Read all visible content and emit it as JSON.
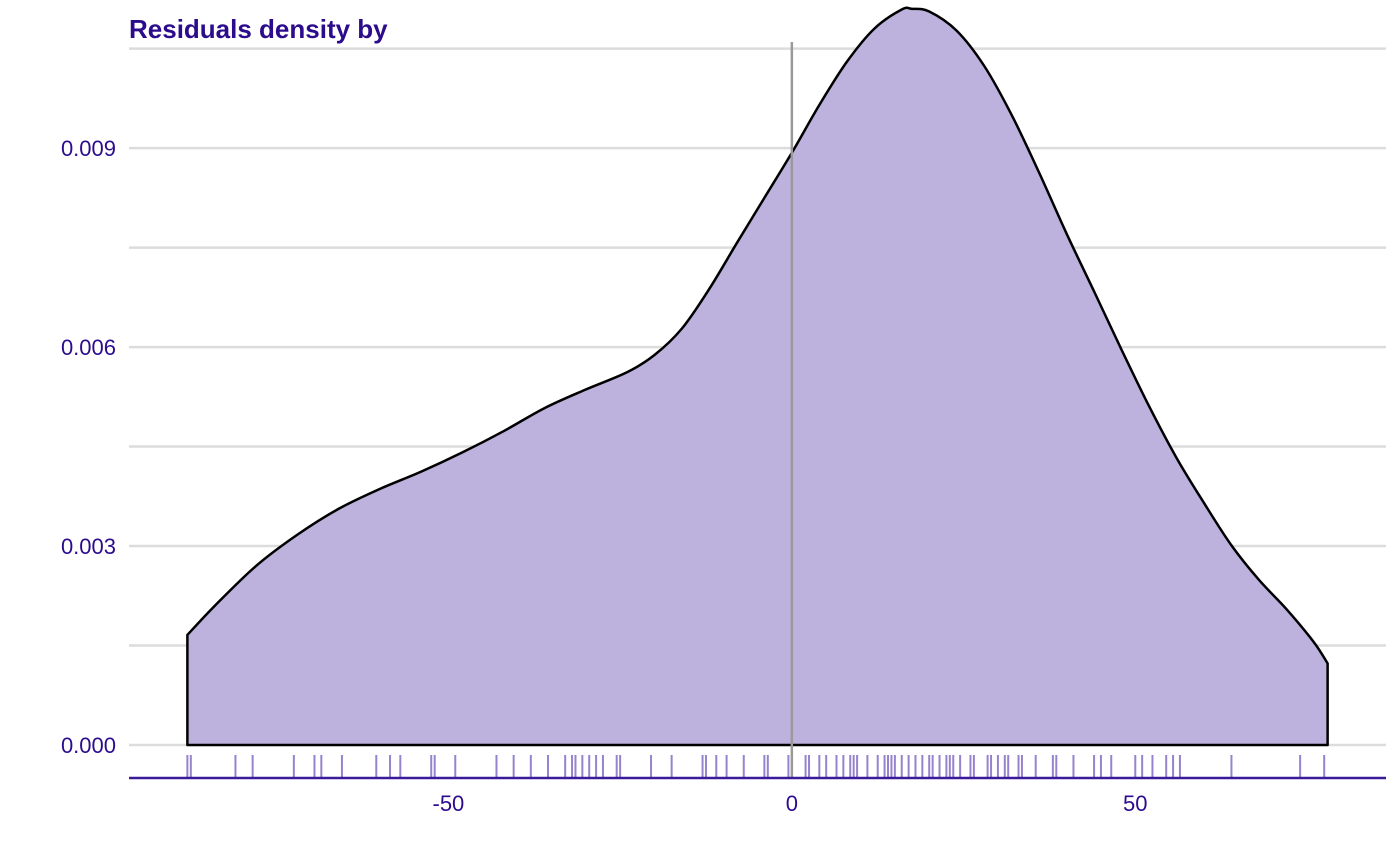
{
  "chart_data": {
    "type": "area",
    "title": "Residuals density by",
    "xlabel": "",
    "ylabel": "",
    "xlim": [
      -96.5,
      86.5
    ],
    "ylim": [
      0,
      0.0106
    ],
    "x_ticks": [
      -50,
      0,
      50
    ],
    "x_tick_labels": [
      "-50",
      "0",
      "50"
    ],
    "y_ticks": [
      0.0,
      0.003,
      0.006,
      0.009
    ],
    "y_tick_labels": [
      "0.000",
      "0.003",
      "0.006",
      "0.009"
    ],
    "y_minor_gridlines": [
      0.0015,
      0.0045,
      0.0075,
      0.0105
    ],
    "grid": true,
    "reference_line_x": 0,
    "series": [
      {
        "x": [
          -88,
          -84,
          -78,
          -72,
          -66,
          -60,
          -54,
          -48,
          -42,
          -36,
          -30,
          -24,
          -20,
          -16,
          -12,
          -8,
          -4,
          0,
          4,
          8,
          12,
          16,
          17.5,
          20,
          24,
          28,
          32,
          36,
          40,
          44,
          48,
          52,
          56,
          60,
          64,
          68,
          72,
          76,
          78
        ],
        "values": [
          0.00166,
          0.0021,
          0.0027,
          0.00317,
          0.00356,
          0.00386,
          0.00412,
          0.00441,
          0.00473,
          0.00508,
          0.00536,
          0.00562,
          0.00588,
          0.00628,
          0.00688,
          0.00757,
          0.00825,
          0.00893,
          0.00965,
          0.0103,
          0.0108,
          0.01109,
          0.0111,
          0.01106,
          0.01077,
          0.01024,
          0.0095,
          0.00863,
          0.00771,
          0.00684,
          0.00596,
          0.00511,
          0.00433,
          0.00365,
          0.00301,
          0.00249,
          0.00205,
          0.00155,
          0.00123
        ]
      }
    ],
    "rug": [
      -88,
      -87.5,
      -81,
      -78.5,
      -72.5,
      -69.5,
      -68.5,
      -65.5,
      -60.5,
      -58.5,
      -57,
      -52.5,
      -52,
      -49,
      -43,
      -40.5,
      -38,
      -35.5,
      -33,
      -32,
      -31.5,
      -30.5,
      -29.5,
      -28.5,
      -27.5,
      -25.5,
      -25,
      -20.5,
      -17.5,
      -13,
      -12.5,
      -11,
      -9.5,
      -7,
      -4,
      -3.5,
      -0.5,
      2,
      2.5,
      4,
      5,
      6.5,
      7.5,
      8.5,
      9,
      9.5,
      11,
      12.5,
      13.5,
      14,
      14.5,
      15,
      16,
      17,
      18,
      19,
      20,
      20.5,
      21.5,
      22.5,
      23,
      23.5,
      24.5,
      26,
      26.5,
      28.5,
      29,
      30,
      31,
      31.5,
      33,
      33.5,
      35.5,
      38,
      38.5,
      41,
      44,
      45,
      46.5,
      50,
      51,
      52.5,
      54.5,
      55.5,
      56.5,
      64,
      74,
      77.5
    ]
  },
  "colors": {
    "fill": "#bdb2dd",
    "outline": "#000000",
    "rug": "#6a4fb8",
    "axis": "#3a1a99",
    "text": "#2c0c8c",
    "grid": "#dcdcdc",
    "reference_line": "#999999"
  }
}
